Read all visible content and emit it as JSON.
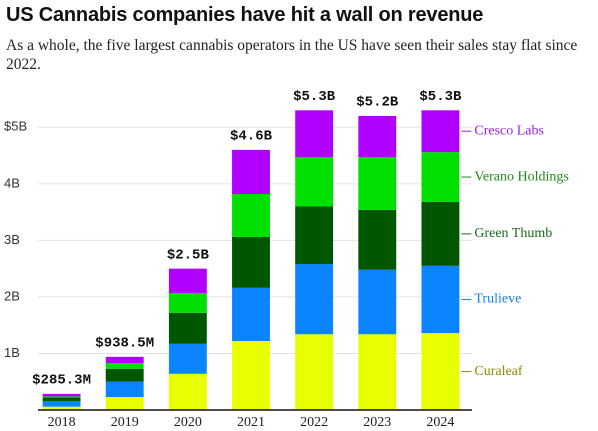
{
  "chart_data": {
    "type": "stacked-bar",
    "title": "US Cannabis companies have hit a wall on revenue",
    "subtitle": "As a whole, the five largest cannabis operators in the US have seen their sales stay flat since 2022.",
    "categories": [
      "2018",
      "2019",
      "2020",
      "2021",
      "2022",
      "2023",
      "2024"
    ],
    "series": [
      {
        "name": "Curaleaf",
        "color": "#e8ff00",
        "label_color": "#8c8c00",
        "values": [
          0.06,
          0.23,
          0.64,
          1.22,
          1.34,
          1.34,
          1.36
        ]
      },
      {
        "name": "Trulieve",
        "color": "#0a84ff",
        "label_color": "#1a7fe0",
        "values": [
          0.1,
          0.27,
          0.53,
          0.94,
          1.24,
          1.14,
          1.19
        ]
      },
      {
        "name": "Green Thumb",
        "color": "#005700",
        "label_color": "#1a6a1a",
        "values": [
          0.06,
          0.23,
          0.55,
          0.9,
          1.02,
          1.06,
          1.13
        ]
      },
      {
        "name": "Verano Holdings",
        "color": "#00e000",
        "label_color": "#1d8a1d",
        "values": [
          0.02,
          0.1,
          0.35,
          0.76,
          0.87,
          0.93,
          0.88
        ]
      },
      {
        "name": "Cresco Labs",
        "color": "#b000ff",
        "label_color": "#a020e0",
        "values": [
          0.045,
          0.11,
          0.43,
          0.78,
          0.83,
          0.73,
          0.74
        ]
      }
    ],
    "totals": {
      "values": [
        0.2853,
        0.9385,
        2.5,
        4.6,
        5.3,
        5.2,
        5.3
      ],
      "value_labels": [
        "$285.3M",
        "$938.5M",
        "$2.5B",
        "$4.6B",
        "$5.3B",
        "$5.2B",
        "$5.3B"
      ]
    },
    "ylim": [
      0,
      5.5
    ],
    "yticks": [
      {
        "value": 1,
        "label": "1B"
      },
      {
        "value": 2,
        "label": "2B"
      },
      {
        "value": 3,
        "label": "3B"
      },
      {
        "value": 4,
        "label": "4B"
      },
      {
        "value": 5,
        "label": "$5B"
      }
    ],
    "grid": true
  }
}
